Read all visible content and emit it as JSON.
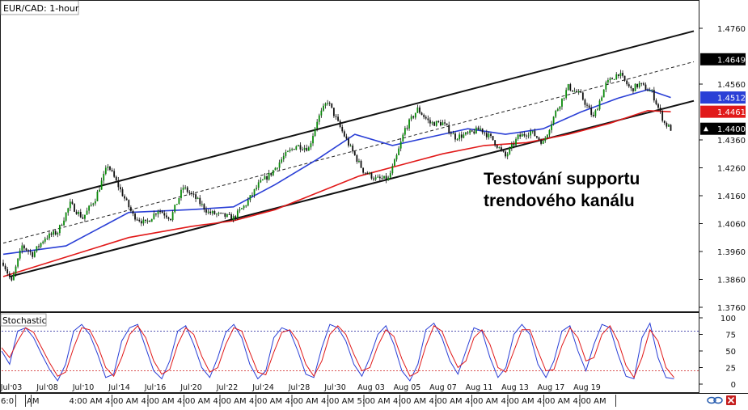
{
  "chart_data": [
    {
      "type": "line",
      "kind": "candlestick",
      "title": "EUR/CAD: 1-hour",
      "ylim": [
        1.372,
        1.48
      ],
      "yticks": [
        "1.4760",
        "1.4560",
        "1.4360",
        "1.4260",
        "1.4160",
        "1.4060",
        "1.3960",
        "1.3860",
        "1.3760"
      ],
      "price_labels": [
        {
          "value": "1.4649",
          "color": "#000000",
          "role": "upper-channel-level"
        },
        {
          "value": "1.4512",
          "color": "#2a3fd6",
          "role": "fast-ma"
        },
        {
          "value": "1.4461",
          "color": "#e11919",
          "role": "slow-ma"
        },
        {
          "value": "1.4400",
          "color": "#000000",
          "role": "current-price"
        }
      ],
      "x_ticks": [
        "Jul 03",
        "Jul 08",
        "Jul 10",
        "Jul 14",
        "Jul 16",
        "Jul 20",
        "Jul 22",
        "Jul 24",
        "Jul 28",
        "Jul 30",
        "Aug 03",
        "Aug 05",
        "Aug 07",
        "Aug 11",
        "Aug 13",
        "Aug 17",
        "Aug 19"
      ],
      "time_ticks": [
        "4:00 AM",
        "4:00 AM",
        "4:00 AM",
        "4:00 AM",
        "4:00 AM",
        "4:00 AM",
        "4:00 AM",
        "4:00 AM",
        "4:00 AM",
        "5:00 AM",
        "4:00 AM",
        "4:00 AM",
        "4:00 AM",
        "4:00 AM",
        "4:00 AM",
        "4:00 AM"
      ],
      "time_ticks_edge": "6:0",
      "price_path": [
        [
          0,
          1.392
        ],
        [
          4,
          1.385
        ],
        [
          9,
          1.398
        ],
        [
          14,
          1.395
        ],
        [
          20,
          1.401
        ],
        [
          26,
          1.403
        ],
        [
          32,
          1.413
        ],
        [
          38,
          1.408
        ],
        [
          44,
          1.415
        ],
        [
          50,
          1.427
        ],
        [
          56,
          1.418
        ],
        [
          62,
          1.409
        ],
        [
          68,
          1.406
        ],
        [
          74,
          1.411
        ],
        [
          80,
          1.408
        ],
        [
          86,
          1.419
        ],
        [
          92,
          1.415
        ],
        [
          98,
          1.41
        ],
        [
          104,
          1.409
        ],
        [
          110,
          1.408
        ],
        [
          116,
          1.413
        ],
        [
          122,
          1.42
        ],
        [
          128,
          1.424
        ],
        [
          134,
          1.43
        ],
        [
          140,
          1.434
        ],
        [
          146,
          1.433
        ],
        [
          150,
          1.443
        ],
        [
          155,
          1.45
        ],
        [
          160,
          1.442
        ],
        [
          166,
          1.433
        ],
        [
          172,
          1.425
        ],
        [
          178,
          1.422
        ],
        [
          184,
          1.422
        ],
        [
          188,
          1.43
        ],
        [
          192,
          1.44
        ],
        [
          198,
          1.447
        ],
        [
          204,
          1.442
        ],
        [
          210,
          1.442
        ],
        [
          216,
          1.437
        ],
        [
          222,
          1.438
        ],
        [
          228,
          1.44
        ],
        [
          234,
          1.436
        ],
        [
          240,
          1.43
        ],
        [
          246,
          1.437
        ],
        [
          252,
          1.439
        ],
        [
          258,
          1.435
        ],
        [
          264,
          1.446
        ],
        [
          270,
          1.455
        ],
        [
          276,
          1.452
        ],
        [
          282,
          1.444
        ],
        [
          288,
          1.456
        ],
        [
          294,
          1.46
        ],
        [
          300,
          1.454
        ],
        [
          304,
          1.456
        ],
        [
          310,
          1.453
        ],
        [
          316,
          1.442
        ],
        [
          319,
          1.44
        ]
      ],
      "moving_averages": [
        {
          "label": "1.4512",
          "color": "#2a3fd6",
          "points": [
            [
              0,
              1.395
            ],
            [
              30,
              1.398
            ],
            [
              60,
              1.41
            ],
            [
              90,
              1.411
            ],
            [
              110,
              1.412
            ],
            [
              130,
              1.42
            ],
            [
              150,
              1.429
            ],
            [
              168,
              1.438
            ],
            [
              186,
              1.434
            ],
            [
              204,
              1.437
            ],
            [
              222,
              1.44
            ],
            [
              240,
              1.438
            ],
            [
              258,
              1.44
            ],
            [
              276,
              1.446
            ],
            [
              294,
              1.451
            ],
            [
              308,
              1.454
            ],
            [
              319,
              1.4512
            ]
          ]
        },
        {
          "label": "1.4461",
          "color": "#e11919",
          "points": [
            [
              0,
              1.387
            ],
            [
              30,
              1.394
            ],
            [
              60,
              1.401
            ],
            [
              90,
              1.405
            ],
            [
              110,
              1.407
            ],
            [
              130,
              1.411
            ],
            [
              150,
              1.417
            ],
            [
              170,
              1.423
            ],
            [
              190,
              1.427
            ],
            [
              210,
              1.431
            ],
            [
              230,
              1.434
            ],
            [
              250,
              1.435
            ],
            [
              270,
              1.438
            ],
            [
              290,
              1.442
            ],
            [
              308,
              1.4465
            ],
            [
              319,
              1.4461
            ]
          ]
        }
      ],
      "channel": {
        "upper": [
          [
            3,
            1.411
          ],
          [
            330,
            1.475
          ]
        ],
        "middle": [
          [
            0,
            1.399
          ],
          [
            330,
            1.464
          ]
        ],
        "lower": [
          [
            3,
            1.387
          ],
          [
            330,
            1.45
          ]
        ]
      },
      "annotations": [
        "Testování supportu",
        "trendového kanálu"
      ]
    },
    {
      "type": "line",
      "title": "Stochastic",
      "ylim": [
        0,
        100
      ],
      "yticks": [
        "100",
        "75",
        "50",
        "25",
        "0"
      ],
      "levels": [
        {
          "value": 80,
          "color": "#3a3aa8"
        },
        {
          "value": 20,
          "color": "#d43c3c"
        }
      ],
      "series": [
        {
          "color": "#2a3fd6",
          "values": [
            50,
            30,
            80,
            85,
            70,
            45,
            22,
            5,
            30,
            80,
            90,
            75,
            45,
            10,
            15,
            65,
            85,
            90,
            55,
            20,
            8,
            35,
            80,
            88,
            60,
            25,
            10,
            40,
            78,
            90,
            70,
            30,
            8,
            20,
            70,
            85,
            80,
            50,
            15,
            10,
            55,
            90,
            85,
            65,
            30,
            12,
            40,
            75,
            88,
            60,
            20,
            5,
            30,
            82,
            92,
            70,
            35,
            15,
            50,
            85,
            80,
            40,
            10,
            25,
            75,
            90,
            75,
            30,
            10,
            35,
            80,
            88,
            50,
            20,
            60,
            90,
            85,
            45,
            12,
            8,
            70,
            92,
            40,
            10,
            8
          ]
        },
        {
          "color": "#e11919",
          "values": [
            55,
            40,
            65,
            85,
            78,
            55,
            32,
            12,
            18,
            55,
            85,
            82,
            58,
            25,
            12,
            40,
            75,
            88,
            70,
            35,
            15,
            22,
            60,
            85,
            75,
            42,
            18,
            25,
            60,
            85,
            80,
            48,
            18,
            14,
            48,
            78,
            82,
            65,
            30,
            12,
            35,
            75,
            88,
            75,
            45,
            20,
            25,
            58,
            82,
            72,
            38,
            12,
            18,
            58,
            88,
            80,
            50,
            25,
            35,
            70,
            82,
            60,
            25,
            18,
            50,
            82,
            82,
            50,
            20,
            22,
            58,
            85,
            70,
            35,
            40,
            75,
            88,
            65,
            28,
            10,
            40,
            82,
            65,
            25,
            10
          ]
        }
      ]
    }
  ]
}
